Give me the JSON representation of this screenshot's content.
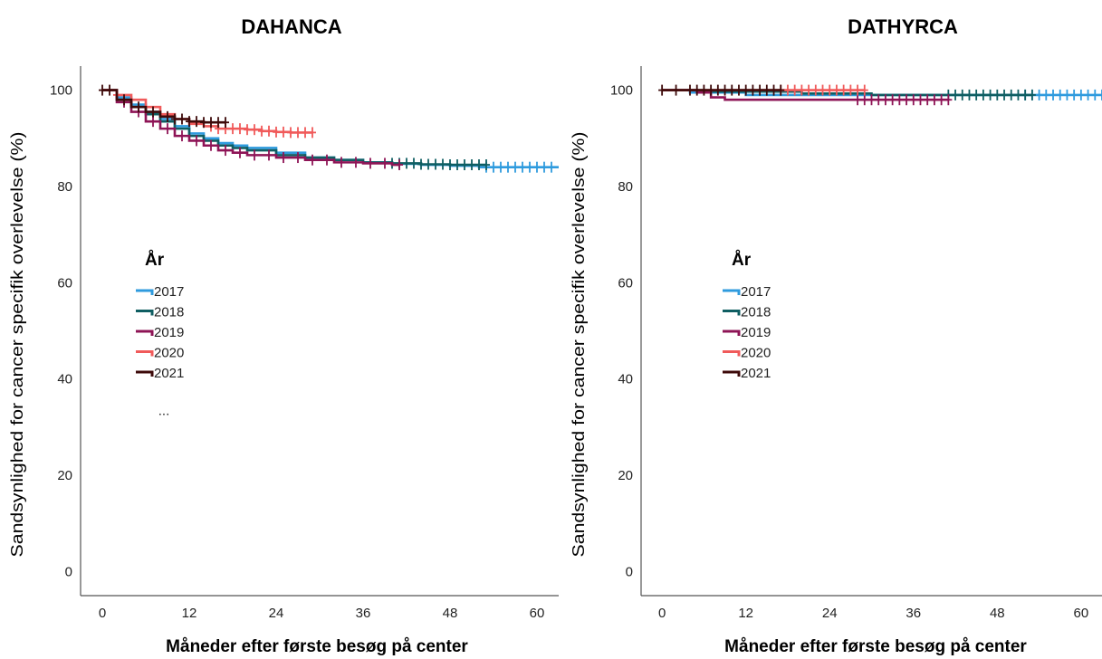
{
  "chart_data": [
    {
      "type": "line",
      "title": "DAHANCA",
      "xlabel": "Måneder efter første besøg på center",
      "ylabel": "Sandsynlighed for cancer specifik overlevelse (%)",
      "xlim": [
        -3,
        63
      ],
      "ylim": [
        -5,
        105
      ],
      "xticks": [
        "0",
        "12",
        "24",
        "36",
        "48",
        "60"
      ],
      "yticks": [
        "0",
        "20",
        "40",
        "60",
        "80",
        "100"
      ],
      "legend": {
        "title": "År",
        "position": "left-middle",
        "more": "..."
      },
      "series": [
        {
          "name": "2017",
          "color": "#2f9bde",
          "x": [
            0,
            2,
            4,
            6,
            8,
            10,
            12,
            14,
            16,
            18,
            20,
            24,
            28,
            32,
            36,
            40,
            44,
            48,
            52,
            56,
            60,
            63
          ],
          "y": [
            100,
            98.5,
            97,
            95.5,
            94,
            92.5,
            91,
            90,
            89,
            88.5,
            88,
            87,
            86,
            85.5,
            85,
            84.7,
            84.5,
            84.3,
            84,
            84,
            84,
            84
          ],
          "censor_x": [
            53,
            54,
            55,
            56,
            57,
            58,
            59,
            60,
            61,
            62
          ]
        },
        {
          "name": "2018",
          "color": "#0f5e62",
          "x": [
            0,
            2,
            4,
            6,
            8,
            10,
            12,
            14,
            16,
            18,
            20,
            24,
            28,
            32,
            36,
            40,
            44,
            48,
            52,
            53
          ],
          "y": [
            100,
            98,
            96.5,
            95,
            93.5,
            92,
            90.5,
            89.5,
            88.5,
            88,
            87.5,
            86.5,
            86,
            85.5,
            85,
            84.8,
            84.6,
            84.5,
            84.5,
            84.5
          ],
          "censor_x": [
            40,
            41,
            42,
            43,
            44,
            45,
            46,
            47,
            48,
            49,
            50,
            51,
            52,
            53
          ]
        },
        {
          "name": "2019",
          "color": "#8e1456",
          "x": [
            0,
            2,
            4,
            6,
            8,
            10,
            12,
            14,
            16,
            18,
            20,
            24,
            28,
            32,
            36,
            40,
            41
          ],
          "y": [
            100,
            97.5,
            95.5,
            93.5,
            92,
            90.5,
            89.5,
            88.5,
            87.5,
            87,
            86.5,
            86,
            85.5,
            85,
            84.8,
            84.5,
            84.5
          ],
          "censor_x": [
            3,
            5,
            7,
            9,
            11,
            13,
            15,
            17,
            19,
            21,
            23,
            25,
            27,
            29,
            31,
            33,
            35,
            37,
            39,
            41
          ]
        },
        {
          "name": "2020",
          "color": "#f05a5a",
          "x": [
            0,
            2,
            4,
            6,
            8,
            10,
            12,
            14,
            16,
            18,
            20,
            22,
            24,
            26,
            28,
            29
          ],
          "y": [
            100,
            99,
            98,
            96.5,
            95,
            94,
            93,
            92.5,
            92,
            92,
            91.8,
            91.5,
            91.3,
            91.2,
            91.2,
            91.2
          ],
          "censor_x": [
            2,
            4,
            6,
            15,
            16,
            17,
            18,
            19,
            20,
            21,
            22,
            23,
            24,
            25,
            26,
            27,
            28,
            29
          ]
        },
        {
          "name": "2021",
          "color": "#3d0a0a",
          "x": [
            0,
            2,
            4,
            6,
            8,
            10,
            12,
            14,
            16,
            17
          ],
          "y": [
            100,
            98,
            96.5,
            95.5,
            94.5,
            94,
            93.5,
            93.3,
            93.3,
            93.3
          ],
          "censor_x": [
            0,
            1,
            3,
            5,
            7,
            9,
            10,
            11,
            12,
            13,
            14,
            15,
            16,
            17
          ]
        }
      ]
    },
    {
      "type": "line",
      "title": "DATHYRCA",
      "xlabel": "Måneder efter første besøg på center",
      "ylabel": "Sandsynlighed for cancer specifik overlevelse (%)",
      "xlim": [
        -3,
        63
      ],
      "ylim": [
        -5,
        105
      ],
      "xticks": [
        "0",
        "12",
        "24",
        "36",
        "48",
        "60"
      ],
      "yticks": [
        "0",
        "20",
        "40",
        "60",
        "80",
        "100"
      ],
      "legend": {
        "title": "År",
        "position": "left-middle",
        "more": ""
      },
      "series": [
        {
          "name": "2017",
          "color": "#2f9bde",
          "x": [
            0,
            4,
            12,
            30,
            64
          ],
          "y": [
            100,
            99.5,
            99,
            99,
            99
          ],
          "censor_x": [
            52,
            53,
            54,
            55,
            56,
            57,
            58,
            59,
            60,
            61,
            62,
            63,
            64
          ]
        },
        {
          "name": "2018",
          "color": "#0f5e62",
          "x": [
            0,
            6,
            20,
            30,
            53
          ],
          "y": [
            100,
            99.7,
            99.3,
            99,
            99
          ],
          "censor_x": [
            41,
            42,
            43,
            44,
            45,
            46,
            47,
            48,
            49,
            50,
            51,
            52,
            53
          ]
        },
        {
          "name": "2019",
          "color": "#8e1456",
          "x": [
            0,
            5,
            7,
            9,
            41
          ],
          "y": [
            100,
            99.5,
            98.5,
            98,
            98
          ],
          "censor_x": [
            28,
            29,
            30,
            31,
            32,
            33,
            34,
            35,
            36,
            37,
            38,
            39,
            40,
            41
          ]
        },
        {
          "name": "2020",
          "color": "#f05a5a",
          "x": [
            0,
            29
          ],
          "y": [
            100,
            100
          ],
          "censor_x": [
            17,
            18,
            19,
            20,
            21,
            22,
            23,
            24,
            25,
            26,
            27,
            28,
            29
          ]
        },
        {
          "name": "2021",
          "color": "#3d0a0a",
          "x": [
            0,
            17
          ],
          "y": [
            100,
            100
          ],
          "censor_x": [
            0,
            2,
            4,
            5,
            6,
            7,
            8,
            9,
            10,
            11,
            12,
            13,
            14,
            15,
            16,
            17
          ]
        }
      ]
    }
  ]
}
